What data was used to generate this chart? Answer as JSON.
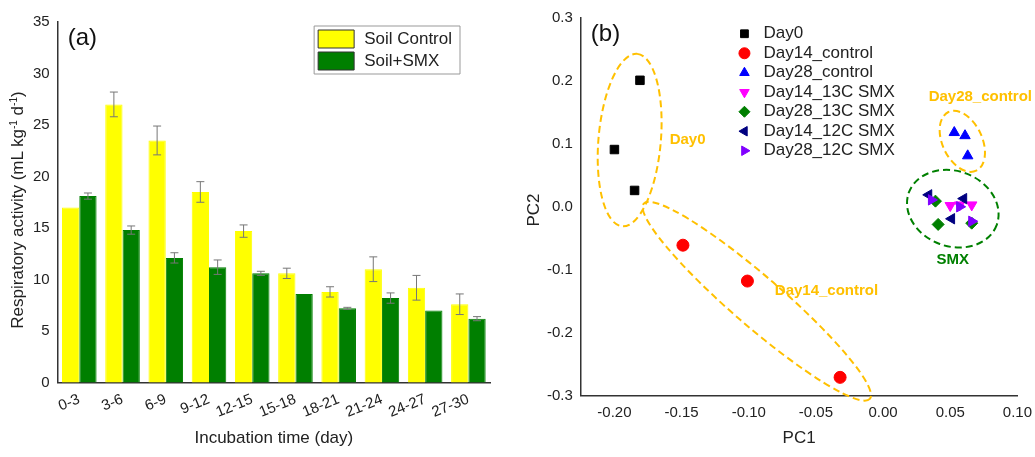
{
  "chart_data": [
    {
      "type": "bar",
      "title": "(a)",
      "xlabel": "Incubation time (day)",
      "ylabel": "Respiratory activity (mL kg$^{-1}$ d$^{-1}$)",
      "categories": [
        "0-3",
        "3-6",
        "6-9",
        "9-12",
        "12-15",
        "15-18",
        "18-21",
        "21-24",
        "24-27",
        "27-30"
      ],
      "series": [
        {
          "name": "Soil Control",
          "color": "#ffff00",
          "values": [
            17.0,
            27.0,
            23.5,
            18.5,
            14.7,
            10.6,
            8.8,
            11.0,
            9.2,
            7.6
          ],
          "errors": [
            null,
            1.2,
            1.4,
            1.0,
            0.6,
            0.5,
            0.5,
            1.2,
            1.2,
            1.0
          ]
        },
        {
          "name": "Soil+SMX",
          "color": "#007f00",
          "values": [
            18.1,
            14.8,
            12.1,
            11.2,
            10.6,
            8.6,
            7.2,
            8.2,
            7.0,
            6.2
          ],
          "errors": [
            0.3,
            0.4,
            0.5,
            0.7,
            0.2,
            null,
            0.1,
            0.5,
            null,
            0.2
          ]
        }
      ],
      "ylim": [
        0,
        35
      ],
      "yticks": [
        0,
        5,
        10,
        15,
        20,
        25,
        30,
        35
      ],
      "grid": false,
      "legend": "top right"
    },
    {
      "type": "scatter",
      "title": "(b)",
      "xlabel": "PC1",
      "ylabel": "PC2",
      "series": [
        {
          "name": "Day0",
          "color": "#000000",
          "marker": "square",
          "x": [
            -0.181,
            -0.2,
            -0.185
          ],
          "values": [
            0.201,
            0.091,
            0.026
          ]
        },
        {
          "name": "Day14_control",
          "color": "#ff0000",
          "marker": "circle",
          "x": [
            -0.149,
            -0.101,
            -0.032
          ],
          "values": [
            -0.061,
            -0.118,
            -0.271
          ]
        },
        {
          "name": "Day28_control",
          "color": "#0000ff",
          "marker": "triangle",
          "x": [
            0.053,
            0.061,
            0.063
          ],
          "values": [
            0.118,
            0.113,
            0.081
          ]
        },
        {
          "name": "Day14_13C SMX",
          "color": "#ff00ff",
          "marker": "triangle-down",
          "x": [
            0.05,
            0.057,
            0.066
          ],
          "values": [
            0.002,
            0.003,
            0.003
          ]
        },
        {
          "name": "Day28_13C SMX",
          "color": "#007f00",
          "marker": "diamond",
          "x": [
            0.041,
            0.066,
            0.039
          ],
          "values": [
            -0.028,
            -0.026,
            0.009
          ]
        },
        {
          "name": "Day14_12C SMX",
          "color": "#000080",
          "marker": "triangle-left",
          "x": [
            0.034,
            0.06,
            0.051
          ],
          "values": [
            0.019,
            0.013,
            -0.019
          ]
        },
        {
          "name": "Day28_12C SMX",
          "color": "#8000ff",
          "marker": "triangle-right",
          "x": [
            0.036,
            0.057,
            0.066
          ],
          "values": [
            0.011,
            0.0,
            -0.023
          ]
        }
      ],
      "annotations": [
        "Day0",
        "Day14_control",
        "Day28_control",
        "SMX"
      ],
      "xlim": [
        -0.225,
        0.1
      ],
      "xticks": [
        {
          "value": -0.2,
          "label": "-0.20"
        },
        {
          "value": -0.15,
          "label": "-0.15"
        },
        {
          "value": -0.1,
          "label": "-0.10"
        },
        {
          "value": -0.05,
          "label": "-0.05"
        },
        {
          "value": 0,
          "label": "0.00"
        },
        {
          "value": 0.05,
          "label": "0.05"
        },
        {
          "value": 0.1,
          "label": "0.10"
        }
      ],
      "ylim": [
        -0.3,
        0.3
      ],
      "yticks": [
        {
          "value": -0.3,
          "label": "-0.3"
        },
        {
          "value": -0.2,
          "label": "-0.2"
        },
        {
          "value": -0.1,
          "label": "-0.1"
        },
        {
          "value": 0,
          "label": "0.0"
        },
        {
          "value": 0.1,
          "label": "0.1"
        },
        {
          "value": 0.2,
          "label": "0.2"
        },
        {
          "value": 0.3,
          "label": "0.3"
        }
      ],
      "grid": false,
      "legend": "top"
    }
  ]
}
